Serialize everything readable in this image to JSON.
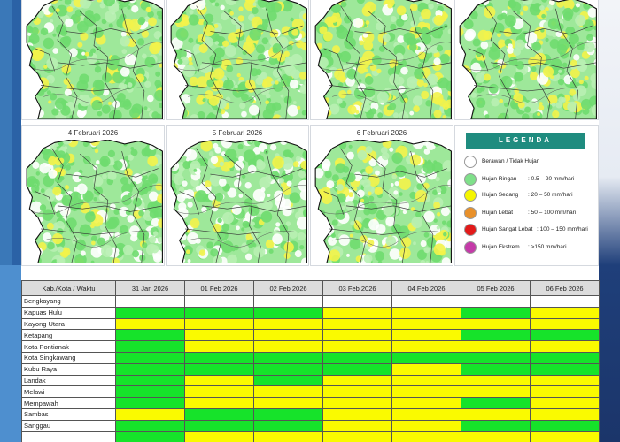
{
  "colors": {
    "green": "#16e32a",
    "yellow": "#fafa00",
    "white": "#ffffff",
    "legend_header": "#1f8c7f"
  },
  "maps": [
    {
      "date": ""
    },
    {
      "date": ""
    },
    {
      "date": ""
    },
    {
      "date": ""
    },
    {
      "date": "4 Februari 2026"
    },
    {
      "date": "5 Februari 2026"
    },
    {
      "date": "6 Februari 2026"
    }
  ],
  "legend": {
    "title": "LEGENDA",
    "items": [
      {
        "name": "Berawan / Tidak Hujan",
        "range": "",
        "color": "#ffffff"
      },
      {
        "name": "Hujan Ringan",
        "range": ": 0.5 – 20 mm/hari",
        "color": "#7fe08a"
      },
      {
        "name": "Hujan Sedang",
        "range": ": 20 – 50 mm/hari",
        "color": "#f5f500"
      },
      {
        "name": "Hujan Lebat",
        "range": ": 50 – 100 mm/hari",
        "color": "#e8902a"
      },
      {
        "name": "Hujan Sangat Lebat",
        "range": ": 100 – 150 mm/hari",
        "color": "#e21a1a"
      },
      {
        "name": "Hujan Ekstrem",
        "range": ": >150 mm/hari",
        "color": "#c43aa8"
      }
    ]
  },
  "table": {
    "header": [
      "Kab./Kota / Waktu",
      "31 Jan 2026",
      "01 Feb 2026",
      "02 Feb 2026",
      "03 Feb 2026",
      "04 Feb 2026",
      "05 Feb 2026",
      "06 Feb 2026"
    ],
    "rows": [
      {
        "name": "Bengkayang",
        "cells": [
          "w",
          "w",
          "w",
          "w",
          "w",
          "w",
          "w"
        ]
      },
      {
        "name": "Kapuas Hulu",
        "cells": [
          "g",
          "g",
          "g",
          "y",
          "y",
          "g",
          "y"
        ]
      },
      {
        "name": "Kayong Utara",
        "cells": [
          "y",
          "y",
          "y",
          "y",
          "y",
          "y",
          "y"
        ]
      },
      {
        "name": "Ketapang",
        "cells": [
          "g",
          "y",
          "y",
          "y",
          "y",
          "g",
          "g"
        ]
      },
      {
        "name": "Kota Pontianak",
        "cells": [
          "g",
          "y",
          "y",
          "y",
          "y",
          "y",
          "y"
        ]
      },
      {
        "name": "Kota Singkawang",
        "cells": [
          "g",
          "g",
          "g",
          "g",
          "g",
          "g",
          "g"
        ]
      },
      {
        "name": "Kubu Raya",
        "cells": [
          "g",
          "g",
          "g",
          "g",
          "y",
          "g",
          "g"
        ]
      },
      {
        "name": "Landak",
        "cells": [
          "g",
          "y",
          "g",
          "y",
          "y",
          "y",
          "y"
        ]
      },
      {
        "name": "Melawi",
        "cells": [
          "g",
          "y",
          "y",
          "y",
          "y",
          "y",
          "y"
        ]
      },
      {
        "name": "Mempawah",
        "cells": [
          "g",
          "y",
          "y",
          "y",
          "y",
          "g",
          "y"
        ]
      },
      {
        "name": "Sambas",
        "cells": [
          "y",
          "g",
          "g",
          "y",
          "y",
          "y",
          "y"
        ]
      },
      {
        "name": "Sanggau",
        "cells": [
          "g",
          "g",
          "g",
          "y",
          "y",
          "g",
          "g"
        ]
      },
      {
        "name": "",
        "cells": [
          "g",
          "y",
          "y",
          "y",
          "y",
          "y",
          "y"
        ]
      }
    ]
  }
}
